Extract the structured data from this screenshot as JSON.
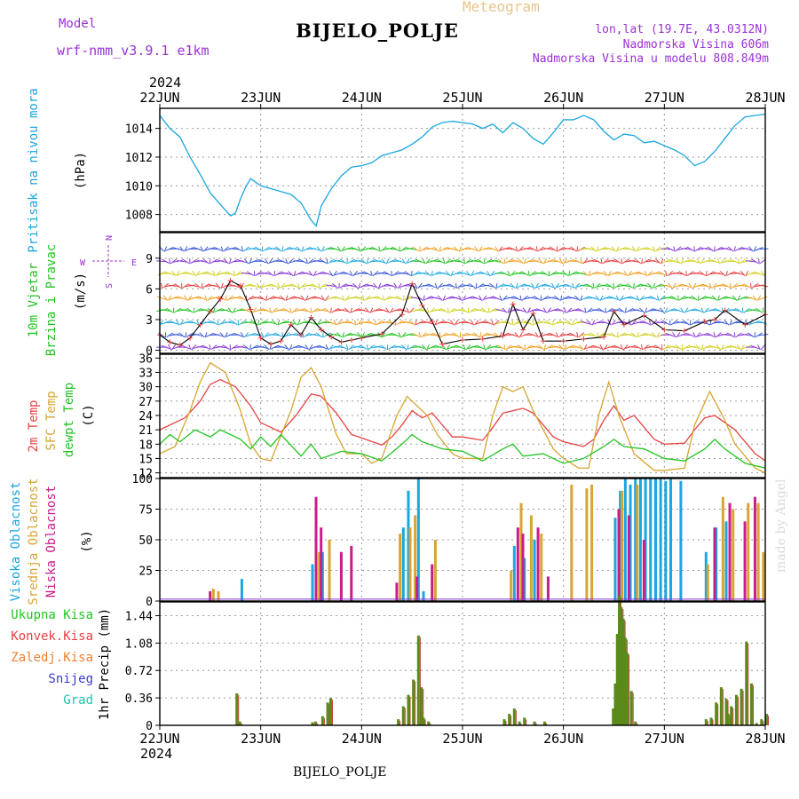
{
  "header": {
    "model_label": "Model",
    "model": "wrf-nmm_v3.9.1 e1km",
    "title": "BIJELO_POLJE",
    "kind": "Meteogram",
    "location": "lon,lat (19.7E, 43.0312N)",
    "elevation": "Nadmorska Visina 606m",
    "model_elevation": "Nadmorska Visina u modelu 808.849m",
    "year_top": "2024"
  },
  "footer": {
    "year": "2024",
    "station": "BIJELO_POLJE",
    "credit": "made by Angel"
  },
  "colors": {
    "pressure": "#1aa6e0",
    "temp2m": "#e84040",
    "sfc": "#d7a530",
    "dew": "#21c421",
    "precip": "#5a8a1a"
  },
  "chart_data": [
    {
      "type": "line",
      "panel": "pressure",
      "ylabel": [
        "Pritisak na nivou mora",
        "(hPa)"
      ],
      "x_ticks": [
        "22JUN",
        "23JUN",
        "24JUN",
        "25JUN",
        "26JUN",
        "27JUN",
        "28JUN"
      ],
      "ylim": [
        1006.8,
        1015.4
      ],
      "y_ticks": [
        1008,
        1010,
        1012,
        1014
      ],
      "series": [
        {
          "color": "#1aa6e0",
          "x": [
            0,
            0.1,
            0.2,
            0.3,
            0.4,
            0.5,
            0.6,
            0.7,
            0.75,
            0.8,
            0.85,
            0.9,
            1.0,
            1.1,
            1.2,
            1.3,
            1.4,
            1.5,
            1.55,
            1.6,
            1.7,
            1.8,
            1.9,
            2.0,
            2.1,
            2.2,
            2.3,
            2.4,
            2.5,
            2.6,
            2.7,
            2.8,
            2.9,
            3.0,
            3.1,
            3.2,
            3.3,
            3.4,
            3.5,
            3.6,
            3.7,
            3.8,
            3.9,
            4.0,
            4.1,
            4.2,
            4.3,
            4.4,
            4.5,
            4.6,
            4.7,
            4.8,
            4.9,
            5.0,
            5.1,
            5.2,
            5.3,
            5.4,
            5.5,
            5.6,
            5.7,
            5.8,
            5.9,
            6.0
          ],
          "y": [
            1014.9,
            1014.0,
            1013.4,
            1012.0,
            1010.8,
            1009.5,
            1008.7,
            1007.9,
            1008.1,
            1009.1,
            1009.9,
            1010.5,
            1010.0,
            1009.8,
            1009.6,
            1009.4,
            1008.8,
            1007.6,
            1007.2,
            1008.6,
            1009.8,
            1010.7,
            1011.3,
            1011.4,
            1011.6,
            1012.1,
            1012.3,
            1012.5,
            1012.9,
            1013.4,
            1014.1,
            1014.4,
            1014.5,
            1014.4,
            1014.3,
            1014.0,
            1014.3,
            1013.7,
            1014.4,
            1014.0,
            1013.3,
            1012.9,
            1013.7,
            1014.6,
            1014.6,
            1014.9,
            1014.6,
            1013.8,
            1013.2,
            1013.6,
            1013.5,
            1013.0,
            1013.1,
            1012.8,
            1012.5,
            1012.1,
            1011.4,
            1011.7,
            1012.4,
            1013.3,
            1014.2,
            1014.8,
            1014.9,
            1015.0
          ]
        }
      ]
    },
    {
      "type": "line",
      "panel": "wind",
      "ylabel": [
        "10m Vjetar",
        "Brzina i Pravac",
        "(m/s)"
      ],
      "compass": {
        "n": "N",
        "s": "S",
        "w": "W",
        "e": "E"
      },
      "ylim": [
        -0.3,
        11.5
      ],
      "y_ticks": [
        0,
        3,
        6,
        9
      ],
      "series": [
        {
          "name": "speed",
          "x": [
            0,
            0.1,
            0.2,
            0.3,
            0.4,
            0.5,
            0.6,
            0.7,
            0.8,
            0.9,
            1.0,
            1.1,
            1.2,
            1.3,
            1.4,
            1.5,
            1.6,
            1.7,
            1.8,
            1.9,
            2.0,
            2.2,
            2.4,
            2.5,
            2.6,
            2.7,
            2.8,
            3.0,
            3.2,
            3.4,
            3.5,
            3.6,
            3.7,
            3.8,
            4.0,
            4.2,
            4.4,
            4.5,
            4.6,
            4.8,
            5.0,
            5.2,
            5.4,
            5.5,
            5.6,
            5.8,
            6.0
          ],
          "y": [
            1.5,
            0.8,
            0.5,
            1.2,
            2.5,
            3.8,
            5.0,
            6.8,
            6.3,
            4.0,
            1.2,
            0.6,
            0.9,
            2.5,
            1.5,
            3.2,
            2.0,
            1.3,
            0.8,
            1.0,
            1.2,
            1.6,
            3.5,
            6.5,
            4.4,
            2.8,
            0.6,
            1.0,
            1.1,
            1.4,
            4.5,
            2.0,
            3.6,
            0.9,
            0.9,
            1.1,
            1.3,
            3.8,
            2.5,
            3.4,
            2.0,
            1.9,
            2.8,
            3.0,
            3.9,
            2.5,
            3.5
          ]
        }
      ]
    },
    {
      "type": "line",
      "panel": "temperature",
      "ylabel": [
        "2m Temp",
        "SFC Temp",
        "dewpt Temp",
        "(C)"
      ],
      "ylim": [
        11,
        36.8
      ],
      "y_ticks": [
        12,
        15,
        18,
        21,
        24,
        27,
        30,
        33,
        36
      ],
      "series": [
        {
          "name": "2m",
          "color": "#e84040",
          "x": [
            0,
            0.25,
            0.4,
            0.5,
            0.6,
            0.75,
            0.9,
            1.0,
            1.2,
            1.35,
            1.5,
            1.6,
            1.75,
            1.9,
            2.0,
            2.2,
            2.3,
            2.4,
            2.5,
            2.6,
            2.7,
            2.9,
            3.0,
            3.2,
            3.3,
            3.4,
            3.5,
            3.6,
            3.7,
            3.9,
            4.0,
            4.2,
            4.3,
            4.4,
            4.5,
            4.6,
            4.7,
            4.9,
            5.0,
            5.2,
            5.3,
            5.4,
            5.5,
            5.6,
            5.7,
            5.9,
            6.0
          ],
          "y": [
            21,
            23.5,
            27,
            30.5,
            31.5,
            30,
            26,
            22.5,
            20.5,
            24,
            28.5,
            28,
            24.5,
            20,
            19.3,
            17.8,
            19.5,
            22,
            25,
            23.5,
            24.5,
            19.5,
            19.5,
            18.8,
            21.5,
            24.5,
            25,
            25.5,
            24.5,
            19.5,
            18.5,
            17.5,
            19,
            23,
            26,
            23,
            24,
            19,
            18,
            18.2,
            21,
            23.5,
            24,
            22.5,
            21,
            16,
            14.5
          ]
        },
        {
          "name": "sfc",
          "color": "#d7a530",
          "x": [
            0,
            0.15,
            0.3,
            0.4,
            0.5,
            0.65,
            0.8,
            0.9,
            1.0,
            1.1,
            1.3,
            1.4,
            1.5,
            1.6,
            1.75,
            1.85,
            2.0,
            2.1,
            2.2,
            2.35,
            2.45,
            2.55,
            2.65,
            2.75,
            2.9,
            3.0,
            3.2,
            3.3,
            3.4,
            3.5,
            3.6,
            3.7,
            3.9,
            4.0,
            4.15,
            4.25,
            4.35,
            4.45,
            4.55,
            4.7,
            4.9,
            5.0,
            5.2,
            5.3,
            5.45,
            5.6,
            5.7,
            5.9,
            6.0
          ],
          "y": [
            16,
            17.5,
            25,
            31,
            35,
            33,
            25,
            18,
            15,
            14.5,
            25,
            32,
            34,
            30,
            20,
            16,
            16,
            14,
            15,
            24,
            28,
            26,
            24,
            20,
            16,
            15,
            15,
            24,
            30,
            29,
            30,
            25,
            17,
            15,
            13,
            13,
            24,
            31,
            24,
            16,
            12.5,
            12.5,
            13,
            22,
            29,
            23,
            18,
            13,
            12
          ]
        },
        {
          "name": "dewpt",
          "color": "#21c421",
          "x": [
            0,
            0.1,
            0.2,
            0.35,
            0.5,
            0.6,
            0.8,
            0.9,
            1.0,
            1.1,
            1.2,
            1.4,
            1.5,
            1.6,
            1.8,
            2.0,
            2.2,
            2.4,
            2.5,
            2.6,
            2.8,
            3.0,
            3.2,
            3.4,
            3.5,
            3.6,
            3.8,
            4.0,
            4.2,
            4.4,
            4.5,
            4.6,
            4.8,
            5.0,
            5.2,
            5.4,
            5.5,
            5.6,
            5.8,
            6.0
          ],
          "y": [
            18,
            20,
            18.5,
            21,
            19.5,
            21,
            19,
            17,
            19.5,
            17.5,
            20,
            15.5,
            18,
            15,
            16.5,
            16,
            14.5,
            18,
            20,
            18.5,
            17,
            16.5,
            14.5,
            17,
            18,
            15.5,
            16,
            14,
            15,
            17.5,
            19,
            17.5,
            17,
            15,
            14.5,
            17,
            19,
            17,
            14,
            13
          ]
        }
      ]
    },
    {
      "type": "bar",
      "panel": "cloud",
      "ylabel": [
        "Visoka Oblacnost",
        "Srednja Oblacnost",
        "Niska Oblacnost",
        "(%)"
      ],
      "ylim": [
        0,
        100
      ],
      "y_ticks": [
        0,
        25,
        50,
        75,
        100
      ],
      "series": [
        {
          "name": "high",
          "color": "#1aa6e0",
          "x": [
            0.8,
            1.5,
            1.6,
            2.4,
            2.45,
            2.55,
            2.6,
            3.5,
            3.6,
            3.7,
            4.5,
            4.55,
            4.6,
            4.65,
            4.7,
            4.75,
            4.8,
            4.85,
            4.9,
            4.95,
            5.0,
            5.05,
            5.15,
            5.4,
            5.5,
            5.6
          ],
          "y": [
            18,
            30,
            40,
            60,
            90,
            100,
            8,
            45,
            35,
            50,
            68,
            90,
            100,
            95,
            100,
            100,
            100,
            100,
            100,
            100,
            98,
            100,
            98,
            40,
            60,
            65
          ]
        },
        {
          "name": "mid",
          "color": "#d7a530",
          "x": [
            0.5,
            0.55,
            1.55,
            1.65,
            2.35,
            2.45,
            2.5,
            2.7,
            3.45,
            3.55,
            3.65,
            3.75,
            4.05,
            4.2,
            4.25,
            4.55,
            4.7,
            5.4,
            5.55,
            5.65,
            5.8,
            5.9,
            5.95
          ],
          "y": [
            10,
            8,
            40,
            50,
            55,
            60,
            70,
            50,
            25,
            80,
            70,
            55,
            95,
            92,
            95,
            90,
            95,
            30,
            85,
            75,
            80,
            80,
            40
          ]
        },
        {
          "name": "low",
          "color": "#cc1b8a",
          "x": [
            0.45,
            1.5,
            1.55,
            1.75,
            1.85,
            2.3,
            2.5,
            2.65,
            3.5,
            3.55,
            3.7,
            3.8,
            4.5,
            4.6,
            4.75,
            5.45,
            5.6,
            5.75,
            5.85
          ],
          "y": [
            8,
            85,
            60,
            40,
            45,
            15,
            20,
            30,
            60,
            55,
            60,
            20,
            75,
            70,
            50,
            60,
            80,
            65,
            85
          ]
        }
      ]
    },
    {
      "type": "bar",
      "panel": "precip",
      "ylabel": [
        "1hr Precip (mm)"
      ],
      "legend": [
        {
          "label": "Ukupna Kisa",
          "color": "#21c421"
        },
        {
          "label": "Konvek.Kisa",
          "color": "#e84040"
        },
        {
          "label": "Zaledj.Kisa",
          "color": "#f08030"
        },
        {
          "label": "Snijeg",
          "color": "#3a3ad9"
        },
        {
          "label": "Grad",
          "color": "#20c0b0"
        }
      ],
      "ylim": [
        0,
        1.62
      ],
      "y_ticks": [
        0,
        0.36,
        0.72,
        1.08,
        1.44
      ],
      "x": [
        0.75,
        0.78,
        1.5,
        1.53,
        1.6,
        1.65,
        1.68,
        2.35,
        2.4,
        2.45,
        2.5,
        2.55,
        2.58,
        2.6,
        2.65,
        3.4,
        3.45,
        3.5,
        3.55,
        3.6,
        3.7,
        3.8,
        4.48,
        4.5,
        4.52,
        4.54,
        4.56,
        4.58,
        4.6,
        4.62,
        4.66,
        4.7,
        5.4,
        5.45,
        5.5,
        5.55,
        5.6,
        5.62,
        5.65,
        5.7,
        5.75,
        5.8,
        5.85,
        5.9,
        5.95,
        6.0
      ],
      "values": [
        0.42,
        0.05,
        0.04,
        0.05,
        0.12,
        0.3,
        0.36,
        0.08,
        0.25,
        0.4,
        0.6,
        1.18,
        0.5,
        0.1,
        0.05,
        0.08,
        0.15,
        0.22,
        0.05,
        0.1,
        0.05,
        0.05,
        0.22,
        0.55,
        1.2,
        1.7,
        1.55,
        1.4,
        1.15,
        0.95,
        0.45,
        0.05,
        0.08,
        0.1,
        0.3,
        0.5,
        0.35,
        0.15,
        0.25,
        0.4,
        0.48,
        1.1,
        0.55,
        0.03,
        0.08,
        0.15
      ]
    }
  ]
}
